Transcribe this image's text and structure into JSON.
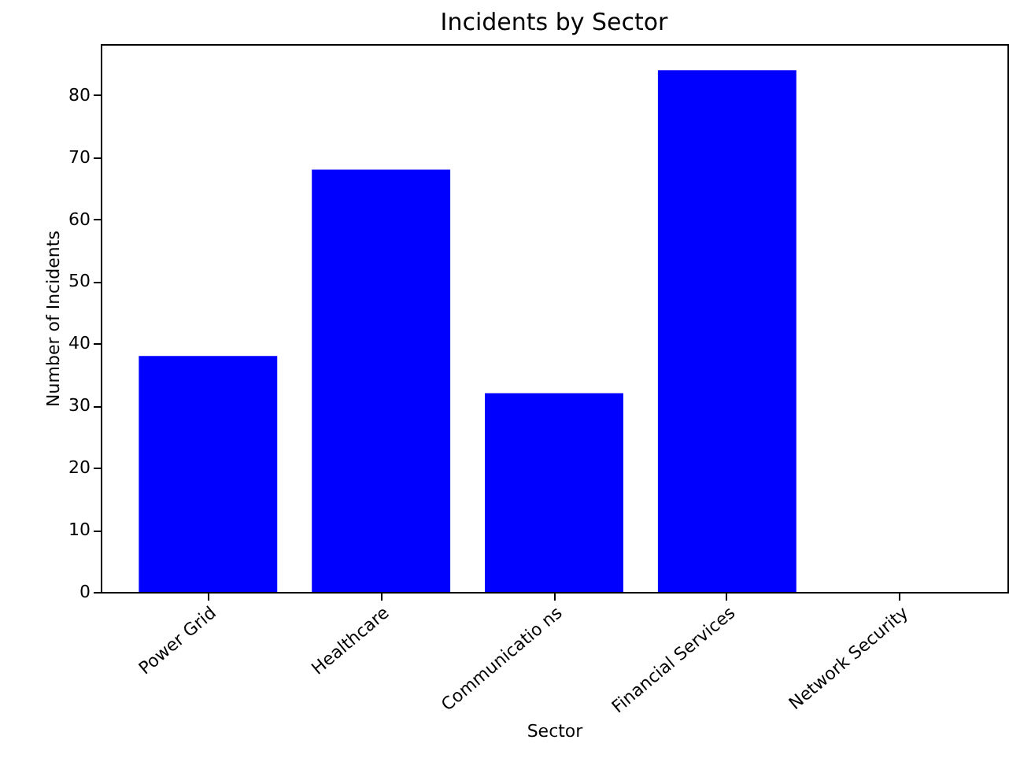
{
  "chart_data": {
    "type": "bar",
    "title": "Incidents by Sector",
    "xlabel": "Sector",
    "ylabel": "Number of Incidents",
    "categories": [
      "Power Grid",
      "Healthcare",
      "Communicatio ns",
      "Financial Services",
      "Network Security"
    ],
    "values": [
      38,
      68,
      32,
      84,
      0
    ],
    "color": "#0000ff",
    "ylim": [
      0,
      88.2
    ],
    "yticks": [
      0,
      10,
      20,
      30,
      40,
      50,
      60,
      70,
      80
    ],
    "grid": false
  }
}
